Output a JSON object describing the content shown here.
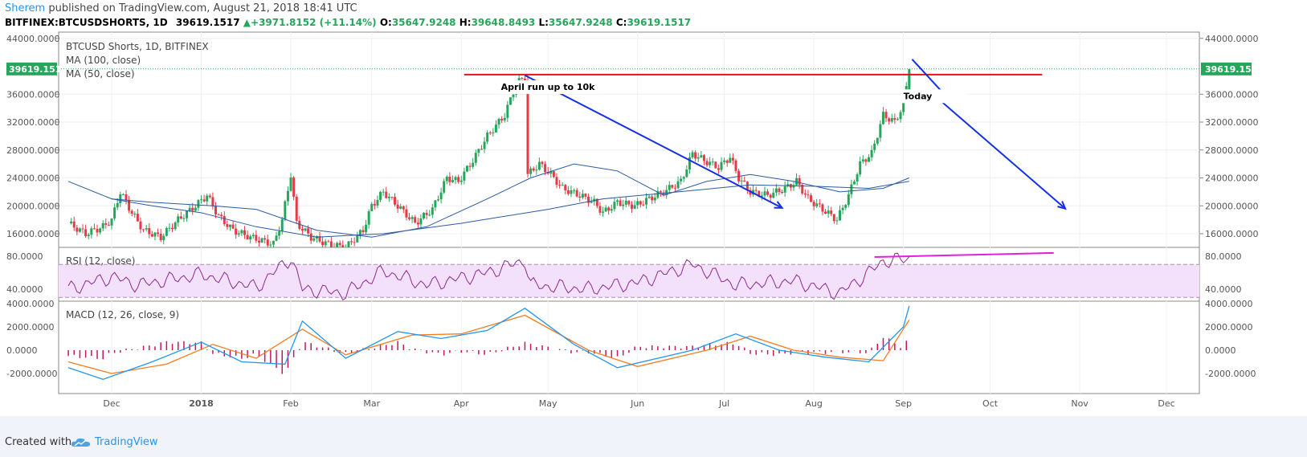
{
  "header": {
    "author": "Sherem",
    "published": "published on TradingView.com, August 21, 2018 18:41 UTC",
    "symbol": "BITFINEX:BTCUSDSHORTS, 1D",
    "last": "39619.1517",
    "change": "+3971.8152 (+11.14%)",
    "o_label": "O:",
    "o_value": "35647.9248",
    "h_label": "H:",
    "h_value": "39648.8493",
    "l_label": "L:",
    "l_value": "35647.9248",
    "c_label": "C:",
    "c_value": "39619.1517"
  },
  "footer": {
    "created_with": "Created with",
    "brand": "TradingView"
  },
  "colors": {
    "up": "#26a65b",
    "down": "#e63b47",
    "ma": "#2c5aa0",
    "rsi": "#8b2a8f",
    "macd": "#2196f3",
    "signal": "#f57c1f",
    "hist": "#c2185b",
    "annotation_red": "#e0141f",
    "annotation_blue": "#1430e6",
    "annotation_magenta": "#e020e0"
  },
  "chart_data": [
    {
      "type": "candlestick",
      "title": "BTCUSD Shorts, 1D, BITFINEX",
      "legend": [
        "MA (100, close)",
        "MA (50, close)"
      ],
      "y_ticks": [
        "44000.0000",
        "36000.0000",
        "32000.0000",
        "28000.0000",
        "24000.0000",
        "20000.0000",
        "16000.0000"
      ],
      "y_range": [
        14000,
        44000
      ],
      "last_price_label": "39619.1517",
      "x_labels": [
        "Dec",
        "2018",
        "Feb",
        "Mar",
        "Apr",
        "May",
        "Jun",
        "Jul",
        "Aug",
        "Sep",
        "Oct",
        "Nov",
        "Dec"
      ],
      "close_path": [
        [
          "2017-11-16",
          17500
        ],
        [
          "2017-11-22",
          16000
        ],
        [
          "2017-11-28",
          17000
        ],
        [
          "2017-12-01",
          18000
        ],
        [
          "2017-12-04",
          22000
        ],
        [
          "2017-12-08",
          19000
        ],
        [
          "2017-12-12",
          16500
        ],
        [
          "2017-12-18",
          15500
        ],
        [
          "2017-12-24",
          18000
        ],
        [
          "2017-12-30",
          20000
        ],
        [
          "2018-01-03",
          21500
        ],
        [
          "2018-01-07",
          18500
        ],
        [
          "2018-01-12",
          16500
        ],
        [
          "2018-01-18",
          15500
        ],
        [
          "2018-01-26",
          14500
        ],
        [
          "2018-01-29",
          18000
        ],
        [
          "2018-02-01",
          24500
        ],
        [
          "2018-02-03",
          17500
        ],
        [
          "2018-02-08",
          15500
        ],
        [
          "2018-02-14",
          14500
        ],
        [
          "2018-02-20",
          14000
        ],
        [
          "2018-02-26",
          16500
        ],
        [
          "2018-03-01",
          20000
        ],
        [
          "2018-03-05",
          22000
        ],
        [
          "2018-03-10",
          20000
        ],
        [
          "2018-03-16",
          17500
        ],
        [
          "2018-03-22",
          19500
        ],
        [
          "2018-03-27",
          24000
        ],
        [
          "2018-03-31",
          23500
        ],
        [
          "2018-04-05",
          26500
        ],
        [
          "2018-04-10",
          30000
        ],
        [
          "2018-04-16",
          33000
        ],
        [
          "2018-04-20",
          37500
        ],
        [
          "2018-04-23",
          38500
        ],
        [
          "2018-04-24",
          24500
        ],
        [
          "2018-04-28",
          26000
        ],
        [
          "2018-05-02",
          24500
        ],
        [
          "2018-05-06",
          22500
        ],
        [
          "2018-05-12",
          21500
        ],
        [
          "2018-05-17",
          20500
        ],
        [
          "2018-05-20",
          19000
        ],
        [
          "2018-05-25",
          20500
        ],
        [
          "2018-05-31",
          20000
        ],
        [
          "2018-06-05",
          21000
        ],
        [
          "2018-06-10",
          22000
        ],
        [
          "2018-06-16",
          23500
        ],
        [
          "2018-06-20",
          27500
        ],
        [
          "2018-06-24",
          26500
        ],
        [
          "2018-06-29",
          25500
        ],
        [
          "2018-07-03",
          27000
        ],
        [
          "2018-07-06",
          24000
        ],
        [
          "2018-07-10",
          22000
        ],
        [
          "2018-07-16",
          21500
        ],
        [
          "2018-07-22",
          22500
        ],
        [
          "2018-07-26",
          23500
        ],
        [
          "2018-07-30",
          21000
        ],
        [
          "2018-08-04",
          19500
        ],
        [
          "2018-08-09",
          18000
        ],
        [
          "2018-08-13",
          21500
        ],
        [
          "2018-08-17",
          26000
        ],
        [
          "2018-08-21",
          27500
        ],
        [
          "2018-08-25",
          33000
        ],
        [
          "2018-08-29",
          32000
        ],
        [
          "2018-09-01",
          34500
        ],
        [
          "2018-09-03",
          39600
        ]
      ],
      "ma100": [
        [
          "2017-11-16",
          23500
        ],
        [
          "2017-12-01",
          21000
        ],
        [
          "2017-12-15",
          20000
        ],
        [
          "2018-01-01",
          19000
        ],
        [
          "2018-01-20",
          17000
        ],
        [
          "2018-02-10",
          15500
        ],
        [
          "2018-03-05",
          16000
        ],
        [
          "2018-04-01",
          17500
        ],
        [
          "2018-05-01",
          19500
        ],
        [
          "2018-05-20",
          21000
        ],
        [
          "2018-06-15",
          22000
        ],
        [
          "2018-07-10",
          23000
        ],
        [
          "2018-08-01",
          22800
        ],
        [
          "2018-08-20",
          22500
        ],
        [
          "2018-09-03",
          23500
        ]
      ],
      "ma50": [
        [
          "2017-12-01",
          21000
        ],
        [
          "2017-12-15",
          20500
        ],
        [
          "2018-01-05",
          20000
        ],
        [
          "2018-01-20",
          19500
        ],
        [
          "2018-02-10",
          16500
        ],
        [
          "2018-03-01",
          15500
        ],
        [
          "2018-03-20",
          17000
        ],
        [
          "2018-04-10",
          21000
        ],
        [
          "2018-04-25",
          24000
        ],
        [
          "2018-05-10",
          26000
        ],
        [
          "2018-05-25",
          25000
        ],
        [
          "2018-06-10",
          21500
        ],
        [
          "2018-06-25",
          23500
        ],
        [
          "2018-07-10",
          24500
        ],
        [
          "2018-07-25",
          23500
        ],
        [
          "2018-08-10",
          22000
        ],
        [
          "2018-08-25",
          22500
        ],
        [
          "2018-09-03",
          24000
        ]
      ],
      "annotations": [
        {
          "text": "April run up to 10k",
          "x": "2018-04-30",
          "y": 36600
        },
        {
          "text": "Today",
          "x": "2018-09-06",
          "y": 35300
        }
      ]
    },
    {
      "type": "line",
      "title": "RSI (12, close)",
      "y_ticks": [
        "80.0000",
        "40.0000"
      ],
      "band": [
        30,
        70
      ],
      "values_approx": [
        [
          "2017-11-16",
          40
        ],
        [
          "2017-12-01",
          55
        ],
        [
          "2017-12-10",
          45
        ],
        [
          "2018-01-01",
          58
        ],
        [
          "2018-01-20",
          42
        ],
        [
          "2018-02-01",
          78
        ],
        [
          "2018-02-05",
          40
        ],
        [
          "2018-02-20",
          35
        ],
        [
          "2018-03-05",
          62
        ],
        [
          "2018-03-20",
          45
        ],
        [
          "2018-04-10",
          60
        ],
        [
          "2018-04-23",
          75
        ],
        [
          "2018-04-25",
          45
        ],
        [
          "2018-05-15",
          40
        ],
        [
          "2018-06-01",
          48
        ],
        [
          "2018-06-20",
          70
        ],
        [
          "2018-07-05",
          45
        ],
        [
          "2018-07-25",
          50
        ],
        [
          "2018-08-10",
          35
        ],
        [
          "2018-08-20",
          60
        ],
        [
          "2018-08-25",
          74
        ],
        [
          "2018-09-03",
          77
        ]
      ]
    },
    {
      "type": "line",
      "title": "MACD (12, 26, close, 9)",
      "y_ticks": [
        "4000.0000",
        "2000.0000",
        "0.0000",
        "-2000.0000"
      ],
      "macd_approx": [
        [
          "2017-11-16",
          -1500
        ],
        [
          "2017-11-28",
          -2500
        ],
        [
          "2017-12-15",
          -1000
        ],
        [
          "2018-01-01",
          700
        ],
        [
          "2018-01-15",
          -1000
        ],
        [
          "2018-01-30",
          -1200
        ],
        [
          "2018-02-05",
          2500
        ],
        [
          "2018-02-20",
          -700
        ],
        [
          "2018-03-10",
          1600
        ],
        [
          "2018-03-25",
          1000
        ],
        [
          "2018-04-10",
          1700
        ],
        [
          "2018-04-23",
          3600
        ],
        [
          "2018-05-10",
          500
        ],
        [
          "2018-05-25",
          -1500
        ],
        [
          "2018-06-20",
          0
        ],
        [
          "2018-07-05",
          1400
        ],
        [
          "2018-07-20",
          0
        ],
        [
          "2018-08-05",
          -600
        ],
        [
          "2018-08-20",
          -1000
        ],
        [
          "2018-09-01",
          2000
        ],
        [
          "2018-09-03",
          3800
        ]
      ],
      "signal_approx": [
        [
          "2017-11-16",
          -1000
        ],
        [
          "2017-12-01",
          -2000
        ],
        [
          "2017-12-20",
          -1200
        ],
        [
          "2018-01-05",
          500
        ],
        [
          "2018-01-20",
          -700
        ],
        [
          "2018-02-05",
          1800
        ],
        [
          "2018-02-20",
          -400
        ],
        [
          "2018-03-15",
          1300
        ],
        [
          "2018-04-01",
          1400
        ],
        [
          "2018-04-23",
          3000
        ],
        [
          "2018-05-15",
          0
        ],
        [
          "2018-06-01",
          -1400
        ],
        [
          "2018-06-25",
          0
        ],
        [
          "2018-07-10",
          1200
        ],
        [
          "2018-07-25",
          0
        ],
        [
          "2018-08-10",
          -600
        ],
        [
          "2018-08-25",
          -900
        ],
        [
          "2018-09-03",
          2600
        ]
      ]
    }
  ]
}
